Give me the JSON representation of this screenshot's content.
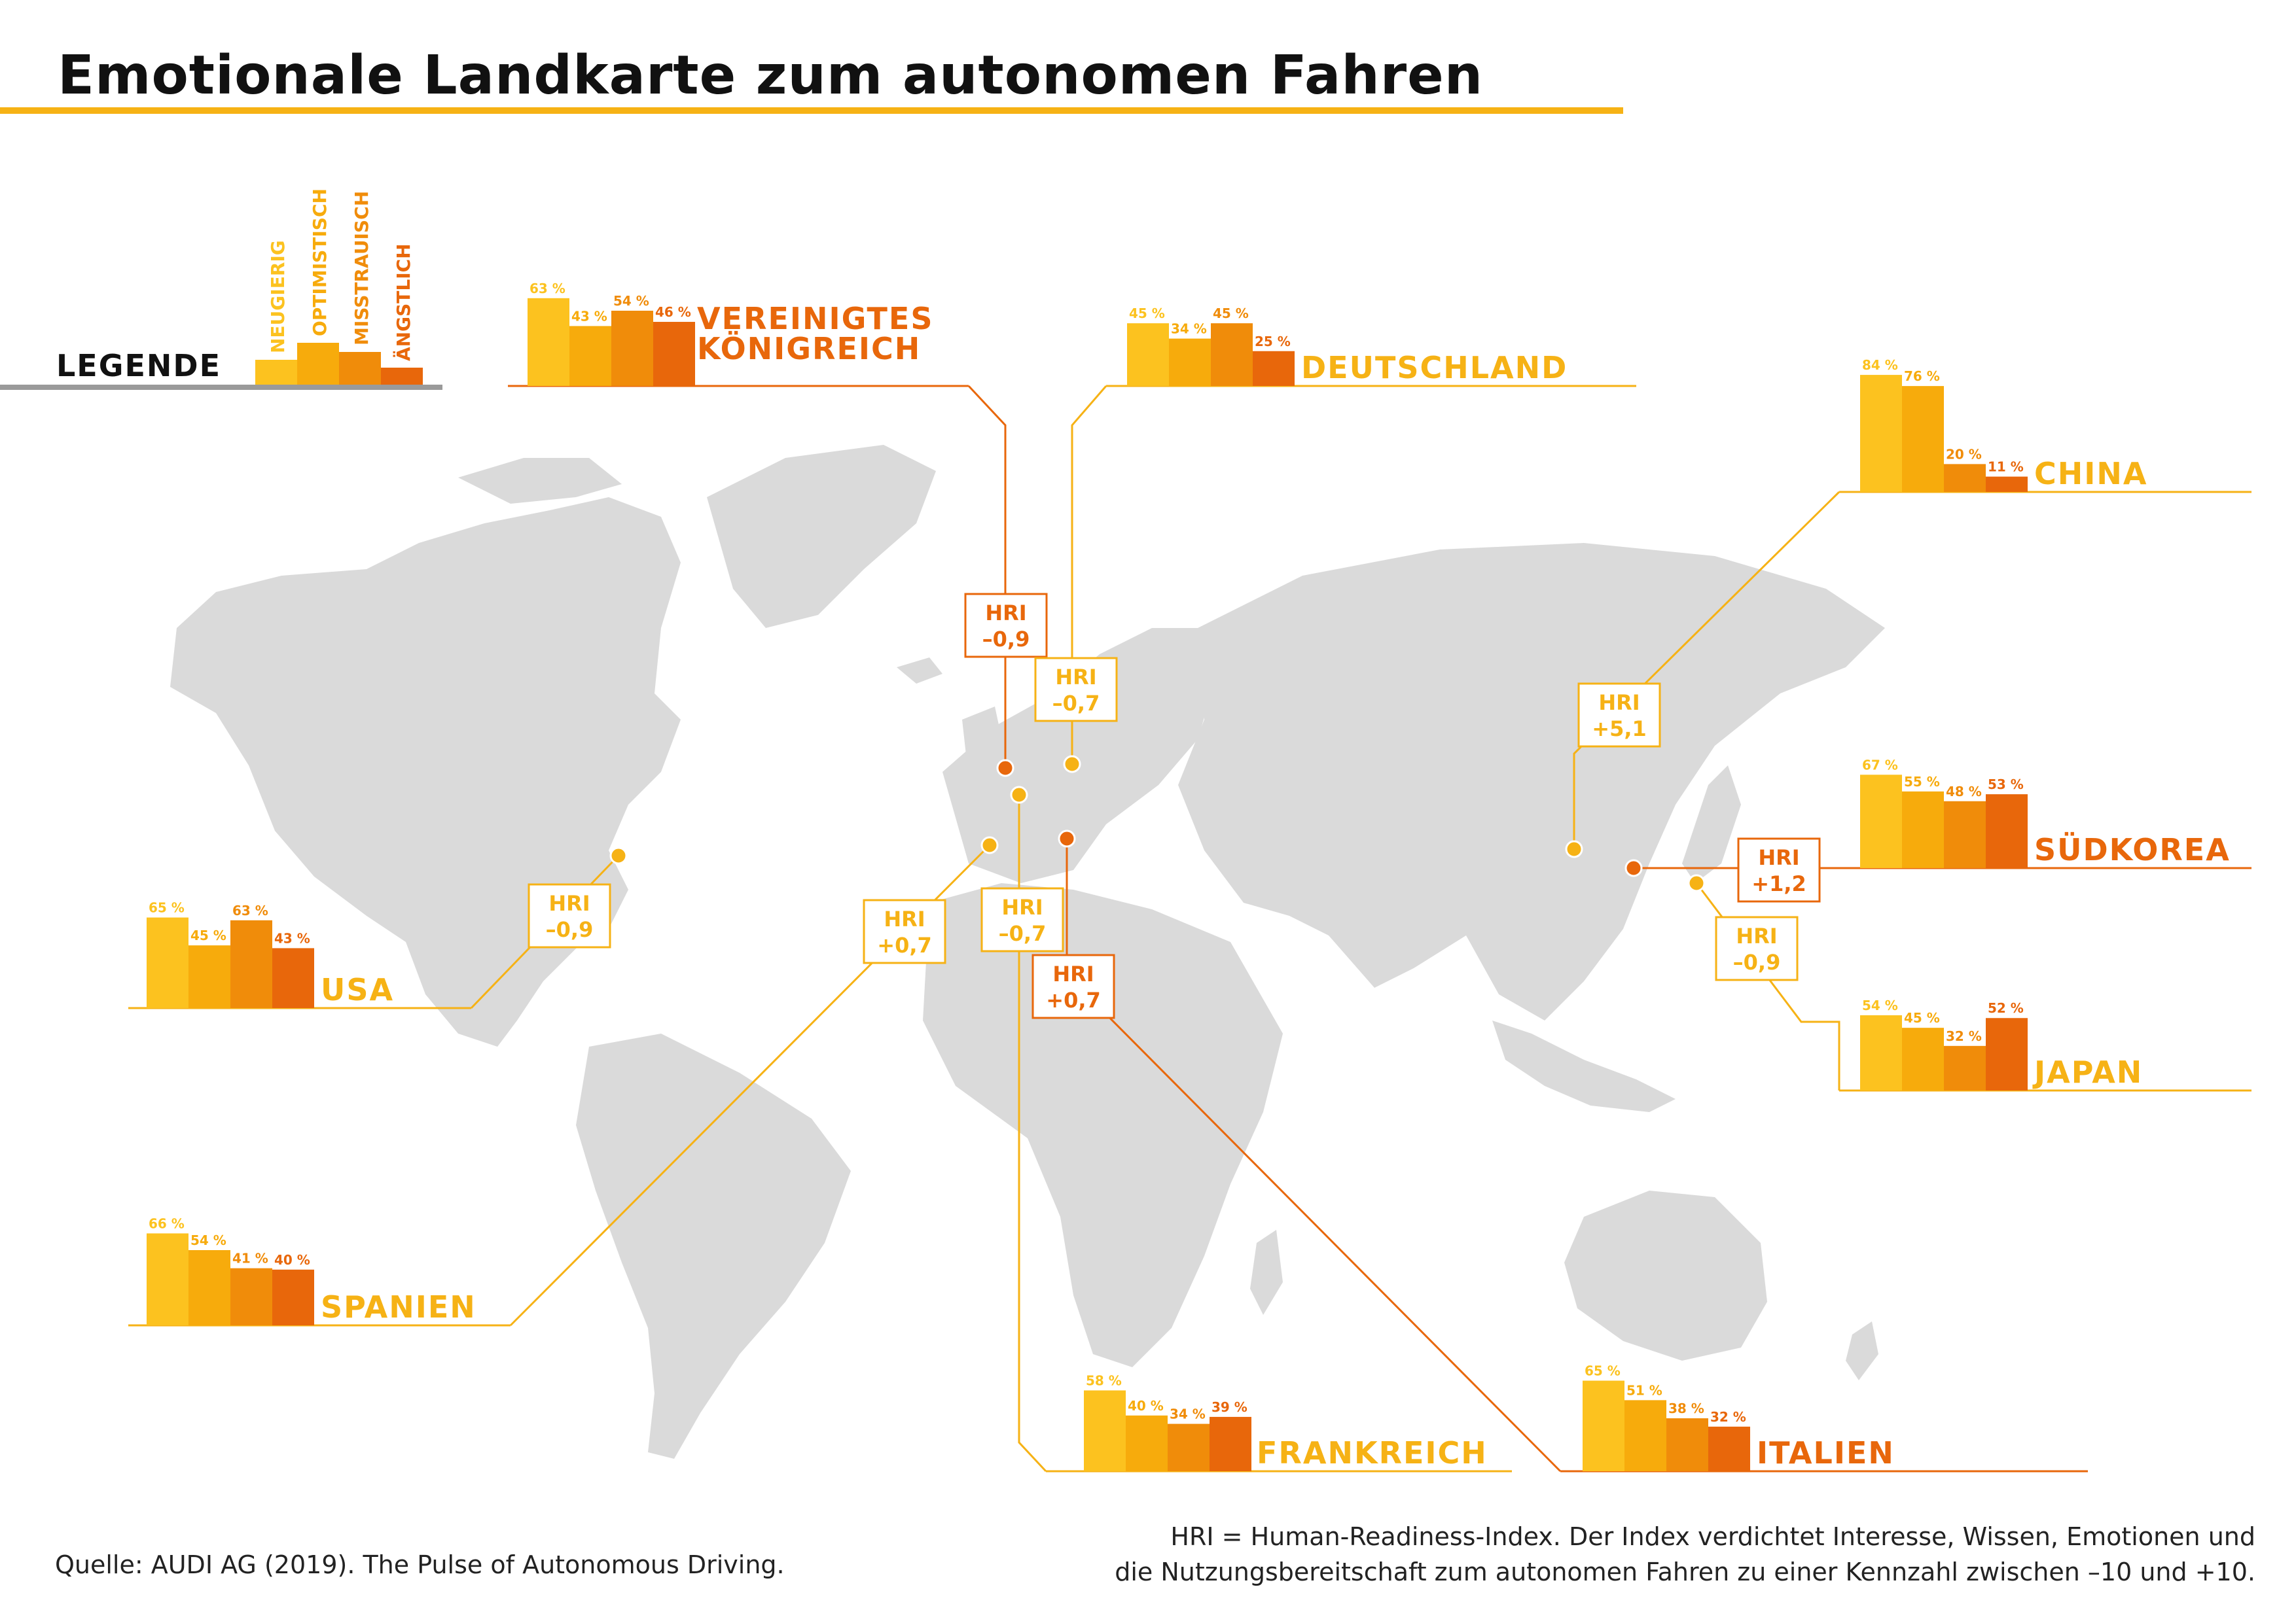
{
  "title": "Emotionale Landkarte zum autonomen Fahren",
  "colors": {
    "neugierig": "#fcc21f",
    "optimistisch": "#f7ab0c",
    "misstrauisch": "#f08c0a",
    "aengstlich": "#e8670b",
    "map": "#dadada",
    "line_yellow": "#f6b215",
    "line_orange": "#e8670b"
  },
  "legend": {
    "title": "LEGENDE",
    "items": [
      "NEUGIERIG",
      "OPTIMISTISCH",
      "MISSTRAUISCH",
      "ÄNGSTLICH"
    ]
  },
  "hri_label": "HRI",
  "chart_data": {
    "type": "bar",
    "categories": [
      "NEUGIERIG",
      "OPTIMISTISCH",
      "MISSTRAUISCH",
      "ÄNGSTLICH"
    ],
    "unit": "%",
    "countries": [
      {
        "name": "VEREINIGTES KÖNIGREICH",
        "values": [
          63,
          43,
          54,
          46
        ],
        "hri": "–0,9"
      },
      {
        "name": "DEUTSCHLAND",
        "values": [
          45,
          34,
          45,
          25
        ],
        "hri": "–0,7"
      },
      {
        "name": "CHINA",
        "values": [
          84,
          76,
          20,
          11
        ],
        "hri": "+5,1"
      },
      {
        "name": "SÜDKOREA",
        "values": [
          67,
          55,
          48,
          53
        ],
        "hri": "+1,2"
      },
      {
        "name": "JAPAN",
        "values": [
          54,
          45,
          32,
          52
        ],
        "hri": "–0,9"
      },
      {
        "name": "USA",
        "values": [
          65,
          45,
          63,
          43
        ],
        "hri": "–0,9"
      },
      {
        "name": "SPANIEN",
        "values": [
          66,
          54,
          41,
          40
        ],
        "hri": "+0,7"
      },
      {
        "name": "FRANKREICH",
        "values": [
          58,
          40,
          34,
          39
        ],
        "hri": "–0,7"
      },
      {
        "name": "ITALIEN",
        "values": [
          65,
          51,
          38,
          32
        ],
        "hri": "+0,7"
      }
    ]
  },
  "source": "Quelle: AUDI AG (2019). The Pulse of Autonomous Driving.",
  "footnote": [
    "HRI = Human-Readiness-Index. Der Index verdichtet Interesse, Wissen, Emotionen und",
    "die Nutzungsbereitschaft zum autonomen Fahren zu einer Kennzahl zwischen –10 und +10."
  ]
}
